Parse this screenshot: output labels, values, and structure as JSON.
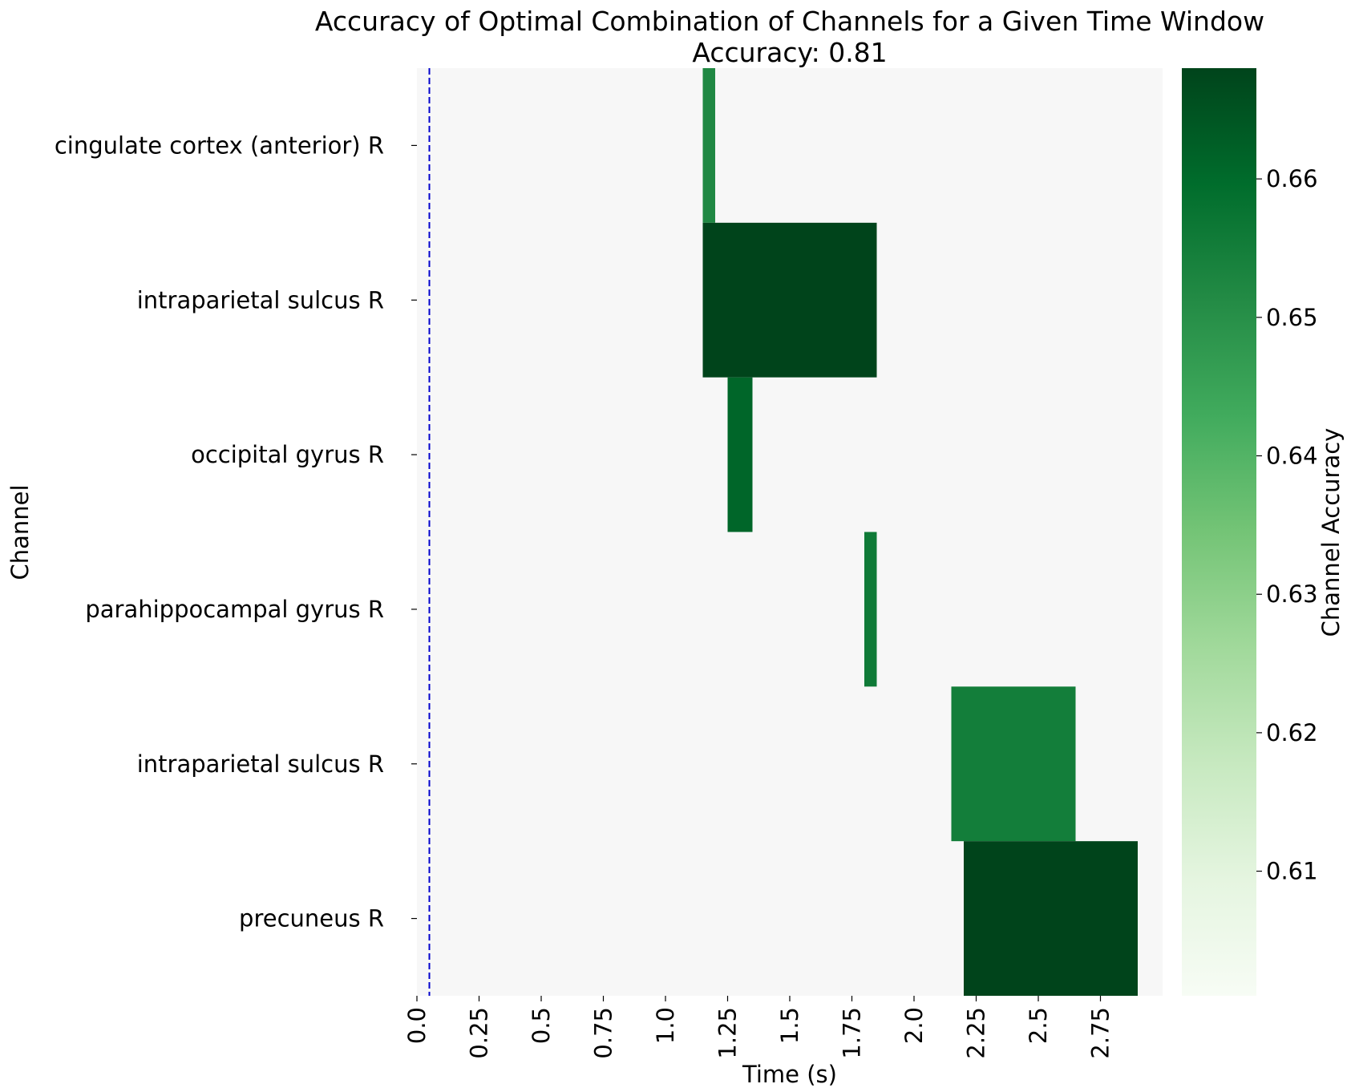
{
  "chart_data": {
    "type": "heatmap",
    "title": "Accuracy of Optimal Combination of Channels for a Given Time Window",
    "subtitle": "Accuracy: 0.81",
    "xlabel": "Time (s)",
    "ylabel": "Channel",
    "xlim": [
      0.0,
      3.0
    ],
    "x_ticks": [
      {
        "value": 0.0,
        "label": "0.0"
      },
      {
        "value": 0.25,
        "label": "0.25"
      },
      {
        "value": 0.5,
        "label": "0.5"
      },
      {
        "value": 0.75,
        "label": "0.75"
      },
      {
        "value": 1.0,
        "label": "1.0"
      },
      {
        "value": 1.25,
        "label": "1.25"
      },
      {
        "value": 1.5,
        "label": "1.5"
      },
      {
        "value": 1.75,
        "label": "1.75"
      },
      {
        "value": 2.0,
        "label": "2.0"
      },
      {
        "value": 2.25,
        "label": "2.25"
      },
      {
        "value": 2.5,
        "label": "2.5"
      },
      {
        "value": 2.75,
        "label": "2.75"
      }
    ],
    "channels": [
      "cingulate cortex (anterior) R",
      "intraparietal sulcus R",
      "occipital gyrus R",
      "parahippocampal gyrus R",
      "intraparietal sulcus R",
      "precuneus R"
    ],
    "cells": [
      {
        "row": 0,
        "x_start": 1.15,
        "x_end": 1.2,
        "value": 0.652
      },
      {
        "row": 1,
        "x_start": 1.15,
        "x_end": 1.85,
        "value": 0.668
      },
      {
        "row": 2,
        "x_start": 1.25,
        "x_end": 1.35,
        "value": 0.661
      },
      {
        "row": 3,
        "x_start": 1.8,
        "x_end": 1.85,
        "value": 0.656
      },
      {
        "row": 4,
        "x_start": 2.15,
        "x_end": 2.65,
        "value": 0.655
      },
      {
        "row": 5,
        "x_start": 2.2,
        "x_end": 2.9,
        "value": 0.668
      }
    ],
    "background_value": 0.601,
    "marker_line": {
      "x": 0.05,
      "color": "#0000cc",
      "style": "dashed"
    },
    "colorbar": {
      "label": "Channel Accuracy",
      "colormap": "Greens",
      "range": [
        0.601,
        0.668
      ],
      "ticks": [
        "0.61",
        "0.62",
        "0.63",
        "0.64",
        "0.65",
        "0.66"
      ]
    },
    "colors": {
      "background": "#f7f7f7",
      "low": "#f7fcf5",
      "high": "#00441b"
    },
    "grid": false
  }
}
